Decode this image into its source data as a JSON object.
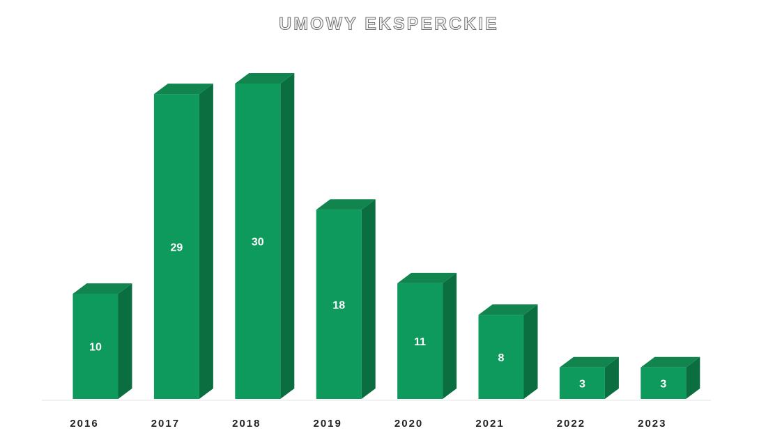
{
  "chart_data": {
    "type": "bar3d",
    "title": "UMOWY EKSPERCKIE",
    "categories": [
      "2016",
      "2017",
      "2018",
      "2019",
      "2020",
      "2021",
      "2022",
      "2023"
    ],
    "values": [
      10,
      29,
      30,
      18,
      11,
      8,
      3,
      3
    ],
    "color": "#0e9a5c"
  }
}
